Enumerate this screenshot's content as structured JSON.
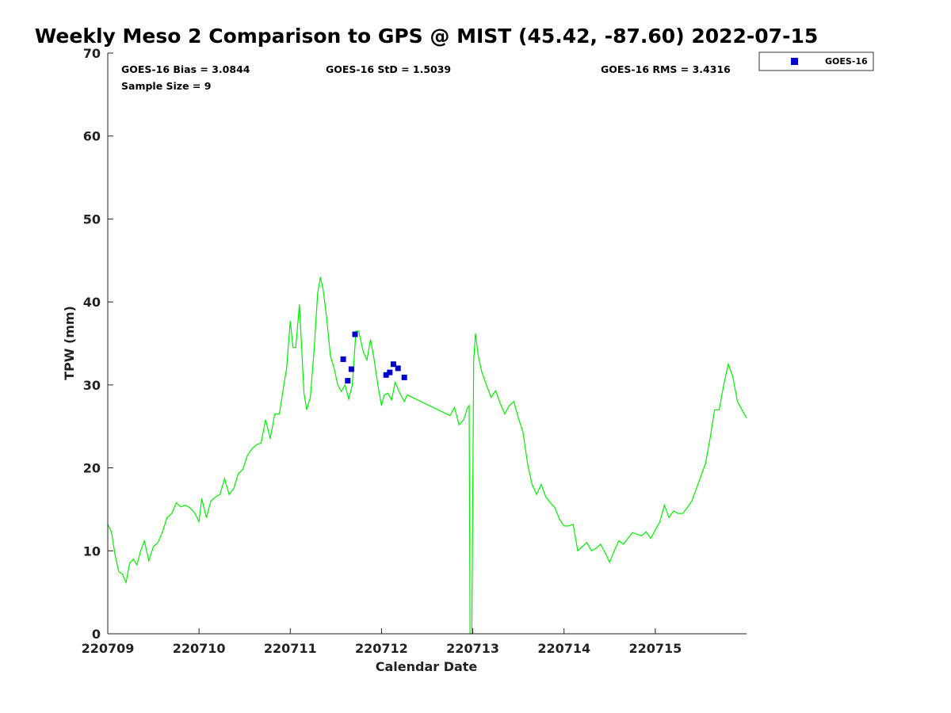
{
  "chart_data": {
    "type": "scatter",
    "title": "Weekly Meso 2 Comparison to GPS @ MIST (45.42, -87.60) 2022-07-15",
    "xlabel": "Calendar Date",
    "ylabel": "TPW (mm)",
    "xlim": [
      220709.0,
      220716.0
    ],
    "ylim": [
      0,
      70
    ],
    "x_ticks": [
      "220709",
      "220710",
      "220711",
      "220712",
      "220713",
      "220714",
      "220715"
    ],
    "y_ticks": [
      0,
      10,
      20,
      30,
      40,
      50,
      60,
      70
    ],
    "grid": false,
    "legend_position": "outside-top-right",
    "stats": {
      "bias": "GOES-16 Bias = 3.0844",
      "std": "GOES-16 StD = 1.5039",
      "rms": "GOES-16 RMS = 3.4316",
      "sample": "Sample Size = 9"
    },
    "series": [
      {
        "name": "GOES-16",
        "kind": "scatter",
        "color": "#0000cc",
        "x": [
          220711.58,
          220711.63,
          220711.67,
          220711.71,
          220712.05,
          220712.09,
          220712.13,
          220712.18,
          220712.25
        ],
        "y": [
          33.1,
          30.5,
          31.9,
          36.1,
          31.2,
          31.5,
          32.5,
          32.0,
          30.9
        ]
      },
      {
        "kind": "line",
        "color": "#00ee00",
        "x": [
          220709.0,
          220709.04,
          220709.08,
          220709.12,
          220709.16,
          220709.2,
          220709.24,
          220709.28,
          220709.32,
          220709.36,
          220709.4,
          220709.45,
          220709.5,
          220709.55,
          220709.6,
          220709.65,
          220709.7,
          220709.75,
          220709.8,
          220709.85,
          220709.9,
          220709.95,
          220710.0,
          220710.03,
          220710.08,
          220710.13,
          220710.18,
          220710.23,
          220710.28,
          220710.33,
          220710.38,
          220710.43,
          220710.48,
          220710.53,
          220710.58,
          220710.63,
          220710.68,
          220710.73,
          220710.78,
          220710.83,
          220710.88,
          220710.93,
          220710.96,
          220711.0,
          220711.03,
          220711.06,
          220711.1,
          220711.15,
          220711.18,
          220711.22,
          220711.26,
          220711.3,
          220711.33,
          220711.36,
          220711.4,
          220711.44,
          220711.48,
          220711.52,
          220711.56,
          220711.6,
          220711.64,
          220711.68,
          220711.72,
          220711.75,
          220711.8,
          220711.84,
          220711.88,
          220711.92,
          220711.96,
          220712.0,
          220712.03,
          220712.07,
          220712.11,
          220712.15,
          220712.2,
          220712.25,
          220712.28,
          220712.75,
          220712.8,
          220712.85,
          220712.9,
          220712.94,
          220712.96,
          220712.97,
          220712.99,
          220713.01,
          220713.03,
          220713.06,
          220713.1,
          220713.15,
          220713.2,
          220713.25,
          220713.3,
          220713.35,
          220713.4,
          220713.45,
          220713.5,
          220713.55,
          220713.6,
          220713.65,
          220713.7,
          220713.75,
          220713.8,
          220713.85,
          220713.9,
          220713.95,
          220714.0,
          220714.05,
          220714.1,
          220714.15,
          220714.2,
          220714.25,
          220714.3,
          220714.35,
          220714.4,
          220714.45,
          220714.5,
          220714.55,
          220714.6,
          220714.65,
          220714.7,
          220714.75,
          220714.8,
          220714.85,
          220714.9,
          220714.95,
          220715.0,
          220715.05,
          220715.1,
          220715.15,
          220715.2,
          220715.25,
          220715.3,
          220715.35,
          220715.4,
          220715.45,
          220715.5,
          220715.55,
          220715.6,
          220715.65,
          220715.7,
          220715.75,
          220715.8,
          220715.85,
          220715.9,
          220715.95,
          220716.0
        ],
        "y": [
          13.2,
          12.3,
          9.5,
          7.5,
          7.2,
          6.2,
          8.5,
          9.0,
          8.3,
          10.0,
          11.2,
          8.8,
          10.5,
          11.0,
          12.3,
          14.0,
          14.5,
          15.8,
          15.3,
          15.5,
          15.2,
          14.6,
          13.5,
          16.3,
          14.0,
          16.0,
          16.5,
          16.8,
          18.7,
          16.8,
          17.5,
          19.3,
          19.8,
          21.5,
          22.3,
          22.8,
          23.0,
          25.8,
          23.5,
          26.5,
          26.5,
          30.0,
          32.0,
          37.7,
          34.5,
          34.5,
          39.7,
          29.0,
          27.0,
          28.5,
          34.0,
          41.0,
          43.0,
          41.5,
          38.0,
          33.5,
          32.0,
          30.0,
          29.2,
          30.0,
          28.3,
          30.0,
          36.5,
          36.5,
          34.0,
          33.0,
          35.5,
          33.0,
          30.0,
          27.5,
          28.8,
          29.0,
          28.2,
          30.3,
          29.0,
          28.0,
          28.8,
          26.3,
          27.3,
          25.2,
          25.8,
          27.2,
          27.5,
          0.0,
          0.0,
          33.0,
          36.2,
          33.5,
          31.5,
          30.0,
          28.5,
          29.3,
          27.8,
          26.5,
          27.5,
          28.0,
          26.0,
          24.3,
          20.5,
          18.0,
          16.8,
          18.0,
          16.5,
          15.8,
          15.2,
          13.8,
          13.0,
          13.0,
          13.2,
          10.0,
          10.5,
          11.0,
          10.0,
          10.3,
          10.8,
          9.8,
          8.6,
          10.0,
          11.2,
          10.8,
          11.5,
          12.2,
          12.0,
          11.8,
          12.3,
          11.5,
          12.5,
          13.5,
          15.5,
          14.0,
          14.8,
          14.5,
          14.5,
          15.2,
          16.0,
          17.5,
          19.0,
          20.5,
          23.5,
          27.0,
          27.0,
          30.0,
          32.5,
          31.0,
          28.0,
          27.0,
          26.0
        ]
      }
    ]
  }
}
